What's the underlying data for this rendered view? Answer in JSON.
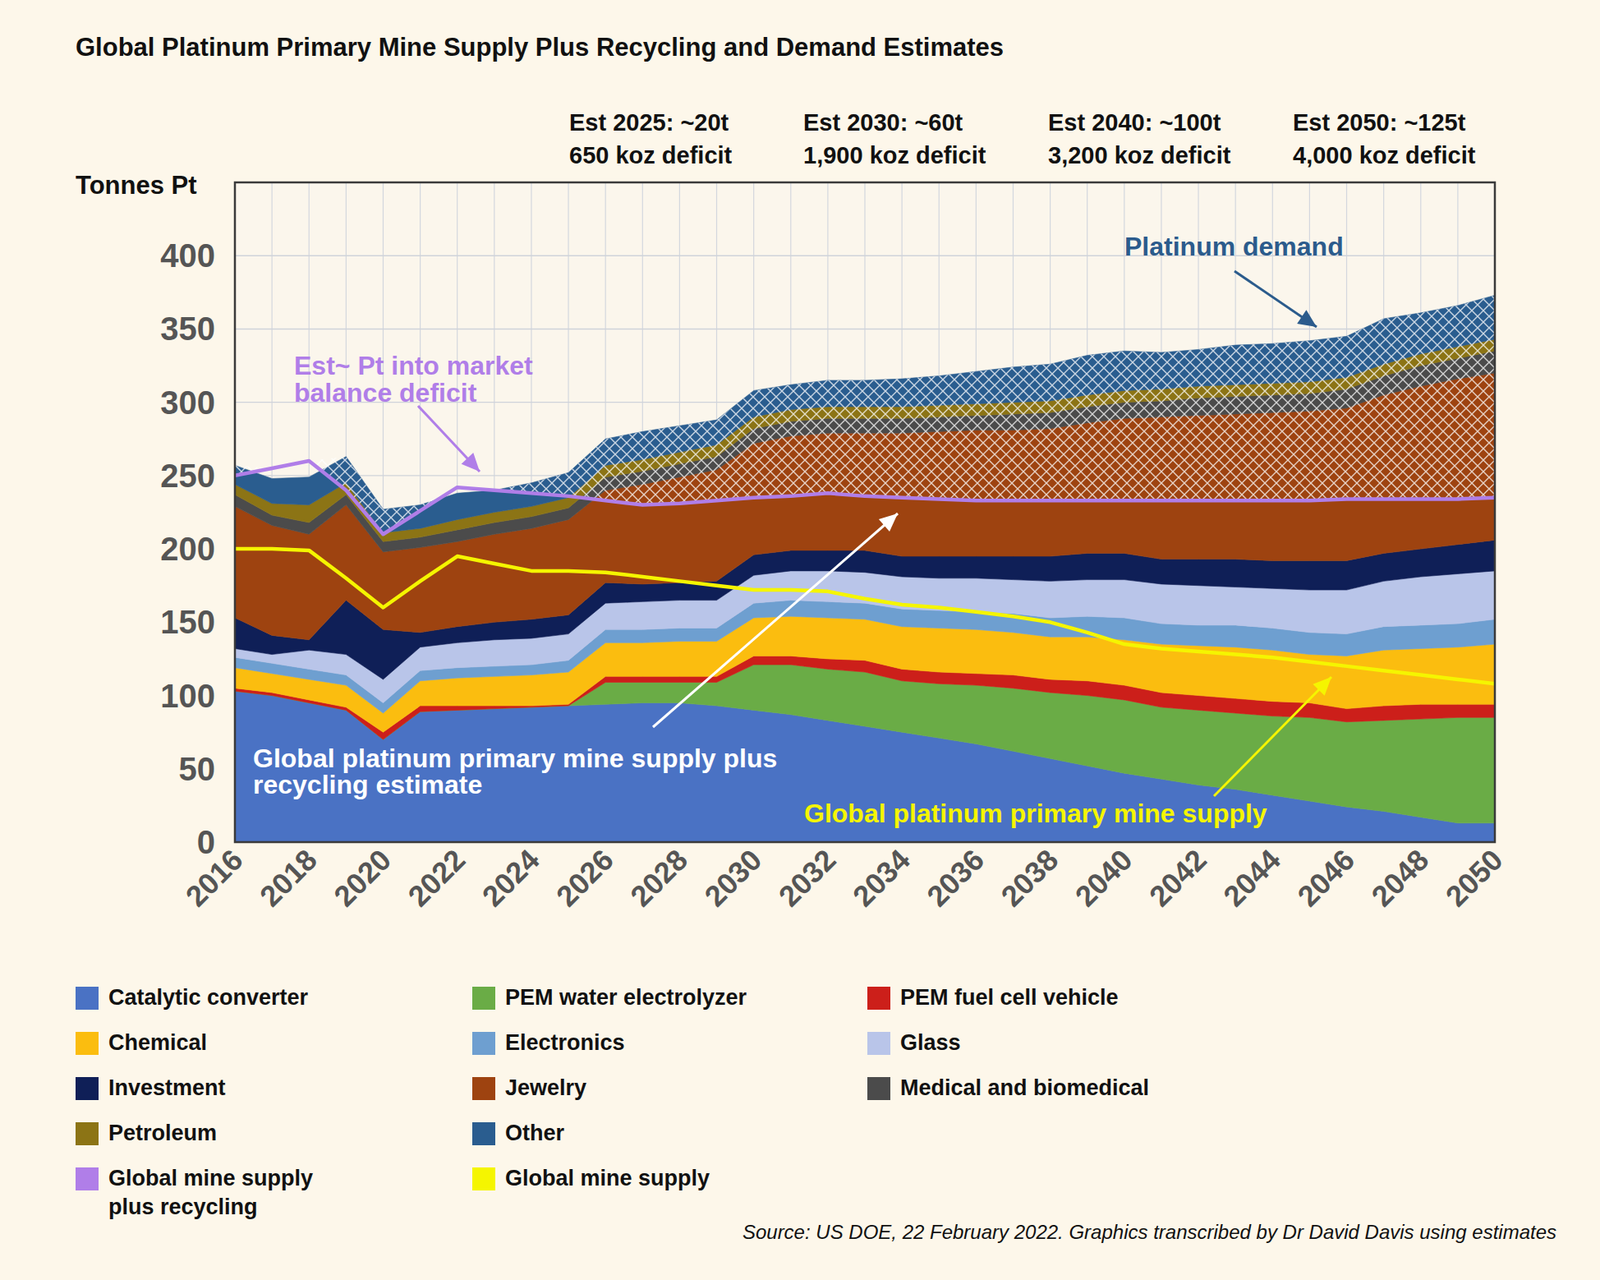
{
  "chart_data": {
    "type": "area",
    "title": "Global Platinum Primary Mine Supply Plus Recycling and Demand Estimates",
    "y_label": "Tonnes Pt",
    "source": "Source: US DOE, 22 February 2022. Graphics transcribed by Dr David Davis using estimates",
    "stacked": true,
    "grid": true,
    "legend": "bottom",
    "x": [
      2016,
      2017,
      2018,
      2019,
      2020,
      2021,
      2022,
      2023,
      2024,
      2025,
      2026,
      2027,
      2028,
      2029,
      2030,
      2031,
      2032,
      2033,
      2034,
      2035,
      2036,
      2037,
      2038,
      2039,
      2040,
      2041,
      2042,
      2043,
      2044,
      2045,
      2046,
      2047,
      2048,
      2049,
      2050
    ],
    "xlim": [
      2016,
      2050
    ],
    "xticks": [
      2016,
      2018,
      2020,
      2022,
      2024,
      2026,
      2028,
      2030,
      2032,
      2034,
      2036,
      2038,
      2040,
      2042,
      2044,
      2046,
      2048,
      2050
    ],
    "ylim": [
      0,
      450
    ],
    "yticks": [
      0,
      50,
      100,
      150,
      200,
      250,
      300,
      350,
      400
    ],
    "annotations": [
      {
        "lines": [
          "Est 2025: ~20t",
          "650 koz deficit"
        ]
      },
      {
        "lines": [
          "Est 2030: ~60t",
          "1,900 koz deficit"
        ]
      },
      {
        "lines": [
          "Est 2040: ~100t",
          "3,200 koz deficit"
        ]
      },
      {
        "lines": [
          "Est 2050: ~125t",
          "4,000 koz deficit"
        ]
      },
      {
        "lines": [
          "Platinum demand"
        ]
      },
      {
        "lines": [
          "Est~ Pt into market",
          "balance deficit"
        ]
      },
      {
        "lines": [
          "Global platinum primary mine supply plus",
          "recycling estimate"
        ]
      },
      {
        "lines": [
          "Global platinum primary mine supply"
        ]
      }
    ],
    "series": [
      {
        "name": "Catalytic converter",
        "color": "#4a72c4",
        "values": [
          103,
          100,
          95,
          90,
          70,
          89,
          90,
          91,
          92,
          93,
          94,
          95,
          95,
          93,
          90,
          87,
          83,
          79,
          75,
          71,
          67,
          62,
          57,
          52,
          47,
          43,
          39,
          36,
          32,
          28,
          24,
          21,
          17,
          13,
          13
        ]
      },
      {
        "name": "PEM water electrolyzer",
        "color": "#6aac46",
        "values": [
          0,
          0,
          0,
          0,
          0,
          0,
          0,
          0,
          0,
          0,
          15,
          14,
          14,
          16,
          31,
          34,
          35,
          37,
          35,
          37,
          40,
          43,
          45,
          48,
          50,
          49,
          51,
          52,
          54,
          57,
          58,
          62,
          67,
          72,
          72
        ]
      },
      {
        "name": "PEM fuel cell vehicle",
        "color": "#cc1f1a",
        "values": [
          2,
          2,
          2,
          2,
          5,
          4,
          3,
          2,
          1,
          1,
          4,
          4,
          4,
          4,
          6,
          6,
          7,
          8,
          8,
          8,
          8,
          9,
          9,
          10,
          10,
          10,
          10,
          10,
          10,
          10,
          9,
          10,
          10,
          9,
          9
        ]
      },
      {
        "name": "Chemical",
        "color": "#fbbd0f",
        "values": [
          14,
          13,
          14,
          15,
          13,
          17,
          19,
          20,
          21,
          22,
          23,
          23,
          24,
          24,
          26,
          27,
          28,
          28,
          29,
          30,
          30,
          29,
          29,
          30,
          31,
          33,
          34,
          35,
          35,
          33,
          36,
          38,
          38,
          39,
          41
        ]
      },
      {
        "name": "Electronics",
        "color": "#6e9fd0",
        "values": [
          7,
          7,
          7,
          7,
          7,
          7,
          7,
          7,
          7,
          8,
          9,
          9,
          9,
          9,
          10,
          11,
          11,
          11,
          12,
          12,
          12,
          13,
          13,
          14,
          15,
          14,
          14,
          15,
          15,
          15,
          15,
          16,
          16,
          16,
          17
        ]
      },
      {
        "name": "Glass",
        "color": "#b9c5e9",
        "values": [
          6,
          6,
          13,
          14,
          16,
          16,
          17,
          18,
          18,
          18,
          18,
          19,
          19,
          19,
          19,
          20,
          21,
          21,
          22,
          22,
          23,
          23,
          25,
          25,
          26,
          27,
          27,
          26,
          27,
          29,
          30,
          31,
          33,
          34,
          33
        ]
      },
      {
        "name": "Investment",
        "color": "#0f1f57",
        "values": [
          21,
          13,
          7,
          37,
          34,
          10,
          11,
          12,
          13,
          13,
          14,
          12,
          12,
          13,
          14,
          14,
          14,
          15,
          14,
          15,
          15,
          16,
          17,
          18,
          18,
          17,
          18,
          19,
          19,
          20,
          20,
          19,
          19,
          20,
          21
        ]
      },
      {
        "name": "Jewelry",
        "color": "#9e4310",
        "values": [
          76,
          75,
          72,
          65,
          53,
          58,
          58,
          60,
          62,
          65,
          63,
          68,
          72,
          76,
          76,
          78,
          80,
          80,
          84,
          85,
          86,
          86,
          87,
          89,
          92,
          97,
          98,
          99,
          101,
          102,
          104,
          108,
          111,
          113,
          114
        ]
      },
      {
        "name": "Medical and biomedical",
        "color": "#4b4b4b",
        "values": [
          8,
          7,
          8,
          7,
          7,
          7,
          8,
          8,
          8,
          8,
          9,
          9,
          9,
          9,
          10,
          10,
          10,
          10,
          10,
          10,
          10,
          11,
          11,
          11,
          11,
          11,
          12,
          12,
          12,
          12,
          13,
          13,
          14,
          14,
          15
        ]
      },
      {
        "name": "Petroleum",
        "color": "#8c7415",
        "values": [
          7,
          8,
          12,
          8,
          6,
          6,
          7,
          7,
          7,
          7,
          8,
          8,
          8,
          8,
          8,
          8,
          8,
          8,
          8,
          8,
          8,
          8,
          8,
          8,
          8,
          8,
          8,
          8,
          8,
          8,
          8,
          8,
          8,
          8,
          8
        ]
      },
      {
        "name": "Other",
        "color": "#2a5d8f",
        "values": [
          13,
          17,
          19,
          18,
          16,
          16,
          18,
          15,
          16,
          17,
          18,
          19,
          18,
          17,
          18,
          17,
          18,
          18,
          19,
          20,
          22,
          24,
          25,
          27,
          27,
          25,
          25,
          27,
          27,
          28,
          28,
          31,
          28,
          28,
          30
        ]
      },
      {
        "name": "Global mine supply plus recycling",
        "color": "#b07ee8",
        "type": "line",
        "values": [
          250,
          255,
          260,
          240,
          210,
          226,
          242,
          240,
          238,
          236,
          233,
          230,
          231,
          233,
          235,
          236,
          238,
          236,
          235,
          234,
          233,
          233,
          233,
          233,
          233,
          233,
          233,
          233,
          233,
          233,
          234,
          234,
          234,
          234,
          235
        ]
      },
      {
        "name": "Global mine supply",
        "color": "#f5f500",
        "type": "line",
        "values": [
          200,
          200,
          199,
          180,
          160,
          178,
          195,
          190,
          185,
          185,
          184,
          181,
          178,
          175,
          172,
          172,
          171,
          166,
          162,
          160,
          157,
          154,
          150,
          143,
          135,
          132,
          130,
          128,
          126,
          123,
          120,
          117,
          114,
          111,
          108
        ]
      }
    ]
  }
}
